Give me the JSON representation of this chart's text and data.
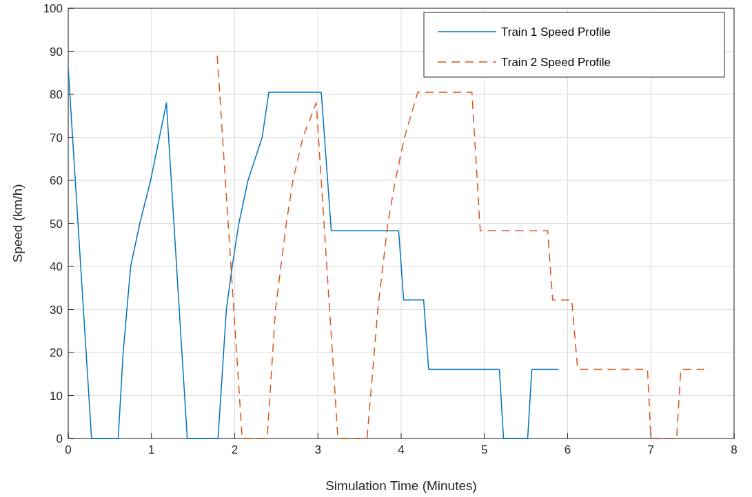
{
  "chart_data": {
    "type": "line",
    "xlabel": "Simulation Time (Minutes)",
    "ylabel": "Speed (km/h)",
    "xlim": [
      0,
      8
    ],
    "ylim": [
      0,
      100
    ],
    "xticks": [
      0,
      1,
      2,
      3,
      4,
      5,
      6,
      7,
      8
    ],
    "yticks": [
      0,
      10,
      20,
      30,
      40,
      50,
      60,
      70,
      80,
      90,
      100
    ],
    "grid": true,
    "legend": "top right",
    "series": [
      {
        "name": "Train 1 Speed Profile",
        "color": "#0072bd",
        "line_style": "solid",
        "x": [
          0,
          0.28,
          0.6,
          0.66,
          0.75,
          0.86,
          0.99,
          1.18,
          1.43,
          1.8,
          1.9,
          1.97,
          2.05,
          2.16,
          2.33,
          2.41,
          3.04,
          3.16,
          3.97,
          4.03,
          4.27,
          4.33,
          5.18,
          5.23,
          5.52,
          5.57,
          5.89
        ],
        "values": [
          86,
          0,
          0,
          20,
          40,
          50,
          60,
          78,
          0,
          0,
          30,
          40,
          50,
          60,
          70,
          80.5,
          80.5,
          48.3,
          48.3,
          32.2,
          32.2,
          16.1,
          16.1,
          0,
          0,
          16.1,
          16.1
        ]
      },
      {
        "name": "Train 2 Speed Profile",
        "color": "#d95319",
        "line_style": "dashed",
        "x": [
          1.79,
          2.09,
          2.39,
          2.49,
          2.62,
          2.7,
          2.82,
          2.98,
          3.24,
          3.59,
          3.72,
          3.84,
          3.93,
          4.04,
          4.2,
          4.85,
          4.95,
          5.76,
          5.82,
          6.05,
          6.12,
          6.96,
          7.0,
          7.31,
          7.36,
          7.64
        ],
        "values": [
          89,
          0,
          0,
          30,
          50,
          60,
          70,
          78,
          0,
          0,
          30,
          50,
          60,
          70,
          80.5,
          80.5,
          48.3,
          48.3,
          32.2,
          32.2,
          16.1,
          16.1,
          0,
          0,
          16.1,
          16.1
        ]
      }
    ]
  }
}
